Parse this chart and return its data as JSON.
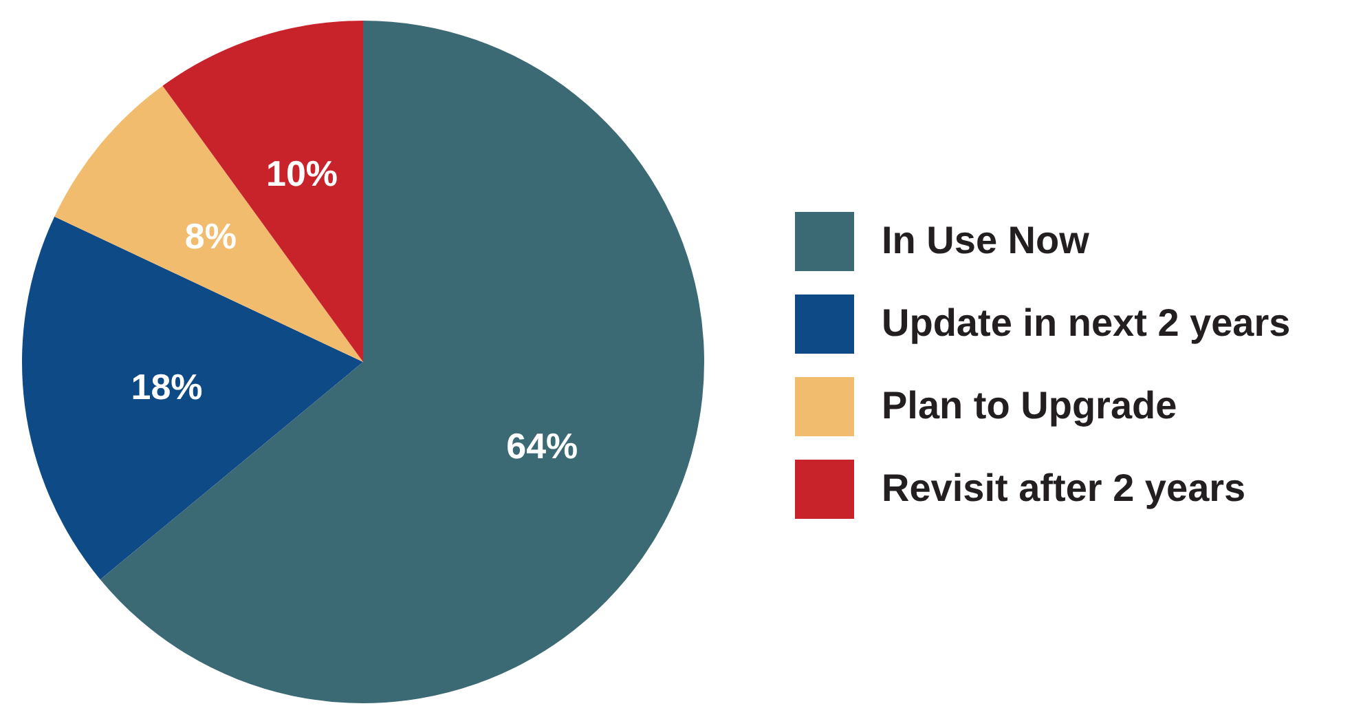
{
  "chart_data": {
    "type": "pie",
    "categories": [
      "In Use Now",
      "Update in next 2 years",
      "Plan to Upgrade",
      "Revisit after 2 years"
    ],
    "values": [
      64,
      18,
      8,
      10
    ],
    "value_labels": [
      "64%",
      "18%",
      "8%",
      "10%"
    ],
    "colors": [
      "#3b6a75",
      "#0e4a86",
      "#f2bc6e",
      "#c8222a"
    ],
    "legend": "right"
  }
}
